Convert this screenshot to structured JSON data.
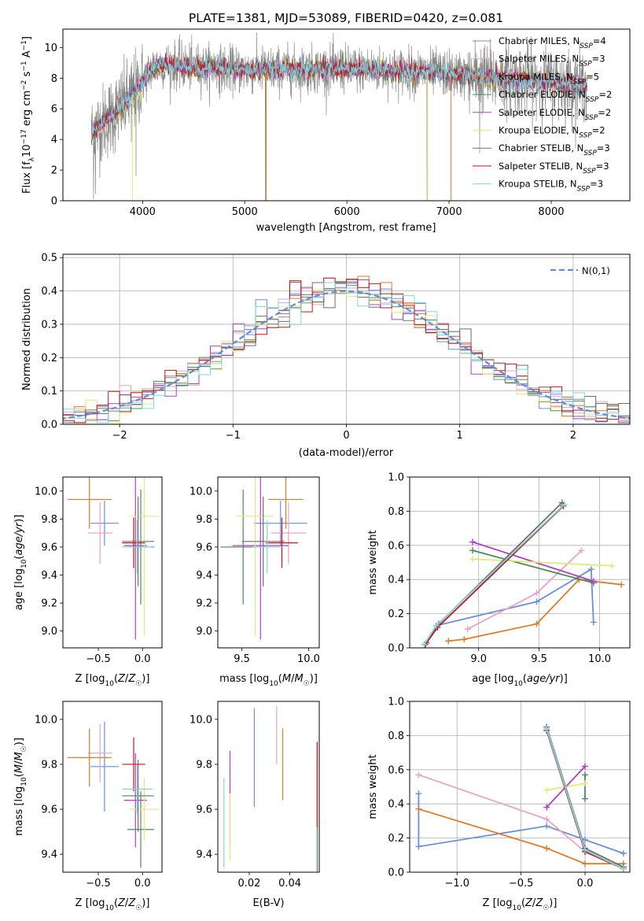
{
  "colors": [
    "#6a8fd8",
    "#e8a3c6",
    "#e07b28",
    "#4d8a5a",
    "#b040c0",
    "#e3e87a",
    "#6e6e6e",
    "#c0181c",
    "#80d6de"
  ],
  "chart_data": [
    {
      "type": "line",
      "title": "PLATE=1381, MJD=53089, FIBERID=0420, z=0.081",
      "xlabel": "wavelength [Angstrom, rest frame]",
      "ylabel": "Flux [f_λ10^-17 erg cm^-2 s^-1 A^-1]",
      "xlim": [
        3220,
        8770
      ],
      "ylim": [
        0,
        11.2
      ],
      "xticks": [
        4000,
        5000,
        6000,
        7000,
        8000
      ],
      "yticks": [
        0,
        2,
        4,
        6,
        8,
        10
      ],
      "continuum": {
        "x": [
          3500,
          3650,
          3800,
          3900,
          4000,
          4100,
          4200,
          4400,
          4600,
          4800,
          5000,
          5200,
          5500,
          6000,
          6500,
          7000,
          7300,
          7600,
          7800,
          8000,
          8200,
          8350
        ],
        "y": [
          4.4,
          5.3,
          6.2,
          6.9,
          7.8,
          8.7,
          8.9,
          8.8,
          8.7,
          8.6,
          8.5,
          8.55,
          8.55,
          8.6,
          8.5,
          8.3,
          8.1,
          7.95,
          7.85,
          7.75,
          7.6,
          7.5
        ]
      },
      "legend": [
        {
          "name": "Chabrier MILES, N",
          "sub": "SSP",
          "suffix": "=4"
        },
        {
          "name": "Salpeter MILES, N",
          "sub": "SSP",
          "suffix": "=3"
        },
        {
          "name": "Kroupa MILES, N",
          "sub": "SSP",
          "suffix": "=5"
        },
        {
          "name": "Chabrier ELODIE, N",
          "sub": "SSP",
          "suffix": "=2"
        },
        {
          "name": "Salpeter ELODIE, N",
          "sub": "SSP",
          "suffix": "=2"
        },
        {
          "name": "Kroupa ELODIE, N",
          "sub": "SSP",
          "suffix": "=2"
        },
        {
          "name": "Chabrier STELIB, N",
          "sub": "SSP",
          "suffix": "=3"
        },
        {
          "name": "Salpeter STELIB, N",
          "sub": "SSP",
          "suffix": "=3"
        },
        {
          "name": "Kroupa STELIB, N",
          "sub": "SSP",
          "suffix": "=3"
        }
      ],
      "legend_position": "upper right"
    },
    {
      "type": "line",
      "xlabel": "(data-model)/error",
      "ylabel": "Normed distribution",
      "xlim": [
        -2.5,
        2.5
      ],
      "ylim": [
        0,
        0.51
      ],
      "xticks": [
        -2,
        -1,
        0,
        1,
        2
      ],
      "yticks": [
        0.0,
        0.1,
        0.2,
        0.3,
        0.4,
        0.5
      ],
      "grid": true,
      "reference": {
        "name": "N(0,1)",
        "mu": 0,
        "sigma": 1,
        "style": "dashed"
      },
      "histogram_bin_width": 0.1
    },
    {
      "type": "scatter",
      "xlabel": "Z [log10(Z/Z☉)]",
      "ylabel": "age [log10(age/yr)]",
      "xlim": [
        -0.9,
        0.22
      ],
      "ylim": [
        8.88,
        10.1
      ],
      "xticks": [
        -0.5,
        0.0
      ],
      "yticks": [
        9.0,
        9.2,
        9.4,
        9.6,
        9.8,
        10.0
      ],
      "points": [
        {
          "x": -0.43,
          "y": 9.77,
          "xerr": 0.16,
          "yerr": 0.16
        },
        {
          "x": -0.48,
          "y": 9.7,
          "xerr": 0.14,
          "yerr": 0.22
        },
        {
          "x": -0.6,
          "y": 9.94,
          "xerr": 0.25,
          "yerr": 0.21
        },
        {
          "x": -0.02,
          "y": 9.6,
          "xerr": 0.15,
          "yerr": 0.41
        },
        {
          "x": -0.08,
          "y": 9.61,
          "xerr": 0.13,
          "yerr": 0.67
        },
        {
          "x": 0.02,
          "y": 9.82,
          "xerr": 0.17,
          "yerr": 0.85
        },
        {
          "x": -0.05,
          "y": 9.64,
          "xerr": 0.18,
          "yerr": 0.32
        },
        {
          "x": -0.1,
          "y": 9.63,
          "xerr": 0.13,
          "yerr": 0.18
        },
        {
          "x": -0.06,
          "y": 9.6,
          "xerr": 0.17,
          "yerr": 0.19
        }
      ]
    },
    {
      "type": "scatter",
      "xlabel": "mass [log10(M/M☉)]",
      "ylabel": "",
      "xlim": [
        9.32,
        10.08
      ],
      "ylim": [
        8.88,
        10.1
      ],
      "xticks": [
        9.5,
        10.0
      ],
      "yticks": [
        9.0,
        9.2,
        9.4,
        9.6,
        9.8,
        10.0
      ],
      "points": [
        {
          "x": 9.79,
          "y": 9.77,
          "xerr": 0.2,
          "yerr": 0.16
        },
        {
          "x": 9.85,
          "y": 9.7,
          "xerr": 0.13,
          "yerr": 0.22
        },
        {
          "x": 9.83,
          "y": 9.94,
          "xerr": 0.13,
          "yerr": 0.21
        },
        {
          "x": 9.51,
          "y": 9.6,
          "xerr": 0.17,
          "yerr": 0.41
        },
        {
          "x": 9.64,
          "y": 9.61,
          "xerr": 0.21,
          "yerr": 0.67
        },
        {
          "x": 9.6,
          "y": 9.82,
          "xerr": 0.14,
          "yerr": 0.85
        },
        {
          "x": 9.66,
          "y": 9.64,
          "xerr": 0.16,
          "yerr": 0.32
        },
        {
          "x": 9.8,
          "y": 9.63,
          "xerr": 0.12,
          "yerr": 0.18
        },
        {
          "x": 9.69,
          "y": 9.6,
          "xerr": 0.11,
          "yerr": 0.19
        }
      ]
    },
    {
      "type": "line",
      "xlabel": "age [log10(age/yr)]",
      "ylabel": "mass weight",
      "xlim": [
        8.43,
        10.25
      ],
      "ylim": [
        0,
        1.0
      ],
      "xticks": [
        9.0,
        9.5,
        10.0
      ],
      "yticks": [
        0.0,
        0.2,
        0.4,
        0.6,
        0.8,
        1.0
      ],
      "grid": true,
      "series": [
        {
          "x": [
            8.55,
            8.65,
            9.48,
            9.93,
            9.95
          ],
          "y": [
            0.02,
            0.13,
            0.27,
            0.46,
            0.15
          ]
        },
        {
          "x": [
            8.91,
            9.48,
            9.85
          ],
          "y": [
            0.11,
            0.32,
            0.57
          ]
        },
        {
          "x": [
            8.75,
            8.88,
            9.48,
            9.83,
            10.18
          ],
          "y": [
            0.04,
            0.05,
            0.14,
            0.4,
            0.37
          ]
        },
        {
          "x": [
            8.95,
            9.95
          ],
          "y": [
            0.57,
            0.38
          ]
        },
        {
          "x": [
            8.95,
            9.95
          ],
          "y": [
            0.62,
            0.39
          ]
        },
        {
          "x": [
            8.95,
            10.1
          ],
          "y": [
            0.52,
            0.48
          ]
        },
        {
          "x": [
            8.57,
            8.67,
            9.69
          ],
          "y": [
            0.03,
            0.14,
            0.85
          ]
        },
        {
          "x": [
            8.56,
            8.66,
            9.7
          ],
          "y": [
            0.02,
            0.12,
            0.83
          ]
        },
        {
          "x": [
            8.55,
            8.65,
            9.71
          ],
          "y": [
            0.02,
            0.13,
            0.84
          ]
        }
      ]
    },
    {
      "type": "scatter",
      "xlabel": "Z [log10(Z/Z☉)]",
      "ylabel": "mass [log10(M/M☉)]",
      "xlim": [
        -0.9,
        0.22
      ],
      "ylim": [
        9.32,
        10.08
      ],
      "xticks": [
        -0.5,
        0.0
      ],
      "yticks": [
        9.4,
        9.6,
        9.8,
        10.0
      ],
      "points": [
        {
          "x": -0.43,
          "y": 9.79,
          "xerr": 0.16,
          "yerr": 0.2
        },
        {
          "x": -0.48,
          "y": 9.85,
          "xerr": 0.14,
          "yerr": 0.13
        },
        {
          "x": -0.6,
          "y": 9.83,
          "xerr": 0.25,
          "yerr": 0.13
        },
        {
          "x": -0.02,
          "y": 9.51,
          "xerr": 0.15,
          "yerr": 0.17
        },
        {
          "x": -0.08,
          "y": 9.64,
          "xerr": 0.13,
          "yerr": 0.21
        },
        {
          "x": 0.02,
          "y": 9.6,
          "xerr": 0.17,
          "yerr": 0.14
        },
        {
          "x": -0.05,
          "y": 9.66,
          "xerr": 0.18,
          "yerr": 0.16
        },
        {
          "x": -0.1,
          "y": 9.8,
          "xerr": 0.13,
          "yerr": 0.12
        },
        {
          "x": -0.06,
          "y": 9.69,
          "xerr": 0.17,
          "yerr": 0.11
        }
      ]
    },
    {
      "type": "scatter",
      "xlabel": "E(B-V)",
      "ylabel": "",
      "xlim": [
        0.0045,
        0.0545
      ],
      "ylim": [
        9.32,
        10.08
      ],
      "xticks": [
        0.02,
        0.04
      ],
      "yticks": [
        9.4,
        9.6,
        9.8,
        10.0
      ],
      "points": [
        {
          "x": 0.0225,
          "y": 9.83,
          "yerr": 0.22
        },
        {
          "x": 0.0335,
          "y": 9.93,
          "yerr": 0.13
        },
        {
          "x": 0.0365,
          "y": 9.8,
          "yerr": 0.16
        },
        {
          "x": 0.0535,
          "y": 9.56,
          "yerr": 0.26
        },
        {
          "x": 0.0105,
          "y": 9.65,
          "yerr": 0.21
        },
        {
          "x": 0.0105,
          "y": 9.52,
          "yerr": 0.15
        },
        {
          "x": 0.0535,
          "y": 9.71,
          "yerr": 0.19
        },
        {
          "x": 0.0535,
          "y": 9.71,
          "yerr": 0.19
        },
        {
          "x": 0.0075,
          "y": 9.54,
          "yerr": 0.2
        }
      ]
    },
    {
      "type": "line",
      "xlabel": "Z [log10(Z/Z☉)]",
      "ylabel": "mass weight",
      "xlim": [
        -1.37,
        0.35
      ],
      "ylim": [
        0,
        1.0
      ],
      "xticks": [
        -1.0,
        -0.5,
        0.0
      ],
      "yticks": [
        0.0,
        0.2,
        0.4,
        0.6,
        0.8,
        1.0
      ],
      "grid": true,
      "series": [
        {
          "x": [
            -1.3,
            -1.3,
            -0.3,
            0.0,
            0.3
          ],
          "y": [
            0.46,
            0.15,
            0.27,
            0.19,
            0.11
          ]
        },
        {
          "x": [
            -1.3,
            -0.3,
            0.0
          ],
          "y": [
            0.57,
            0.31,
            0.12
          ]
        },
        {
          "x": [
            -1.3,
            -0.3,
            0.0,
            0.3
          ],
          "y": [
            0.37,
            0.14,
            0.05,
            0.05
          ]
        },
        {
          "x": [
            0.0,
            0.0
          ],
          "y": [
            0.57,
            0.43
          ]
        },
        {
          "x": [
            -0.3,
            0.0
          ],
          "y": [
            0.38,
            0.62
          ]
        },
        {
          "x": [
            -0.3,
            0.0
          ],
          "y": [
            0.48,
            0.52
          ]
        },
        {
          "x": [
            -0.3,
            0.0,
            0.3
          ],
          "y": [
            0.85,
            0.14,
            0.03
          ]
        },
        {
          "x": [
            -0.3,
            0.0,
            0.3
          ],
          "y": [
            0.83,
            0.12,
            0.02
          ]
        },
        {
          "x": [
            -0.3,
            0.0,
            0.3
          ],
          "y": [
            0.84,
            0.13,
            0.02
          ]
        }
      ]
    }
  ]
}
